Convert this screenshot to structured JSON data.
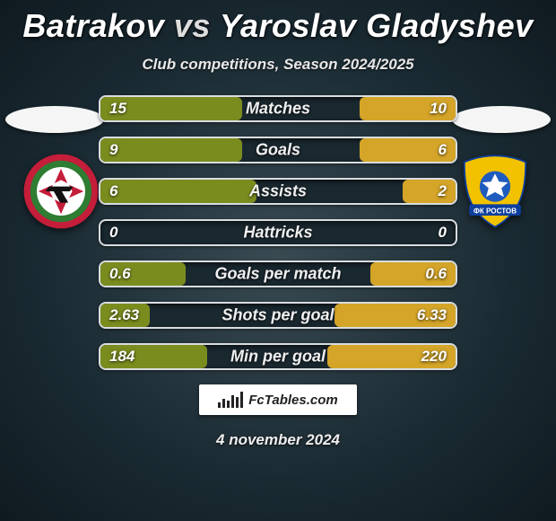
{
  "title": {
    "player1": "Batrakov",
    "vs": "vs",
    "player2": "Yaroslav Gladyshev"
  },
  "subtitle": "Club competitions, Season 2024/2025",
  "colors": {
    "left_fill": "#7b8c1f",
    "right_fill": "#d4a528",
    "bar_bg": "#1a2830",
    "bar_border": "#d8dde0"
  },
  "club_left": {
    "outer": "#c41e3a",
    "mid": "#2e7d32",
    "inner": "#ffffff",
    "accent": "#111111"
  },
  "club_right": {
    "shield": "#f2c200",
    "ball": "#1e5bbf",
    "ribbon": "#0d3f9e",
    "text": "#ffffff"
  },
  "stats": [
    {
      "label": "Matches",
      "left_val": "15",
      "right_val": "10",
      "left_pct": 40,
      "right_pct": 27
    },
    {
      "label": "Goals",
      "left_val": "9",
      "right_val": "6",
      "left_pct": 40,
      "right_pct": 27
    },
    {
      "label": "Assists",
      "left_val": "6",
      "right_val": "2",
      "left_pct": 44,
      "right_pct": 15
    },
    {
      "label": "Hattricks",
      "left_val": "0",
      "right_val": "0",
      "left_pct": 0,
      "right_pct": 0
    },
    {
      "label": "Goals per match",
      "left_val": "0.6",
      "right_val": "0.6",
      "left_pct": 24,
      "right_pct": 24
    },
    {
      "label": "Shots per goal",
      "left_val": "2.63",
      "right_val": "6.33",
      "left_pct": 14,
      "right_pct": 34
    },
    {
      "label": "Min per goal",
      "left_val": "184",
      "right_val": "220",
      "left_pct": 30,
      "right_pct": 36
    }
  ],
  "brand": "FcTables.com",
  "date": "4 november 2024",
  "logo_bar_heights": [
    6,
    10,
    8,
    14,
    12,
    18
  ]
}
